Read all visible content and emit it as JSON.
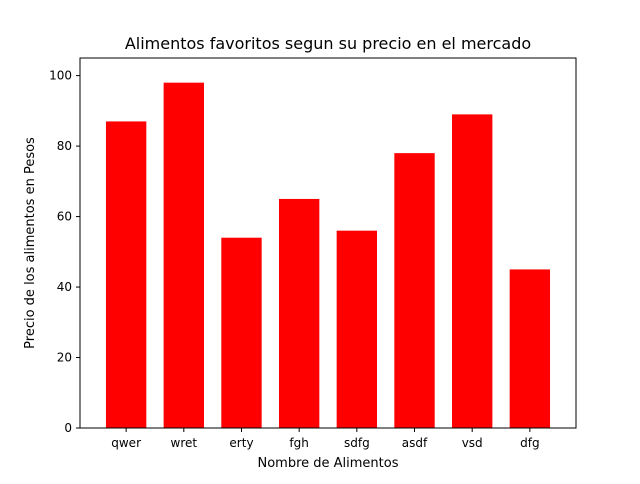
{
  "chart_data": {
    "type": "bar",
    "title": "Alimentos favoritos segun su precio en el mercado",
    "xlabel": "Nombre de Alimentos",
    "ylabel": "Precio de los alimentos en Pesos",
    "categories": [
      "qwer",
      "wret",
      "erty",
      "fgh",
      "sdfg",
      "asdf",
      "vsd",
      "dfg"
    ],
    "values": [
      87,
      98,
      54,
      65,
      56,
      78,
      89,
      45
    ],
    "ylim": [
      0,
      105
    ],
    "yticks": [
      "0",
      "20",
      "40",
      "60",
      "80",
      "100"
    ],
    "bar_color": "#ff0000",
    "grid": false,
    "legend": "none"
  }
}
